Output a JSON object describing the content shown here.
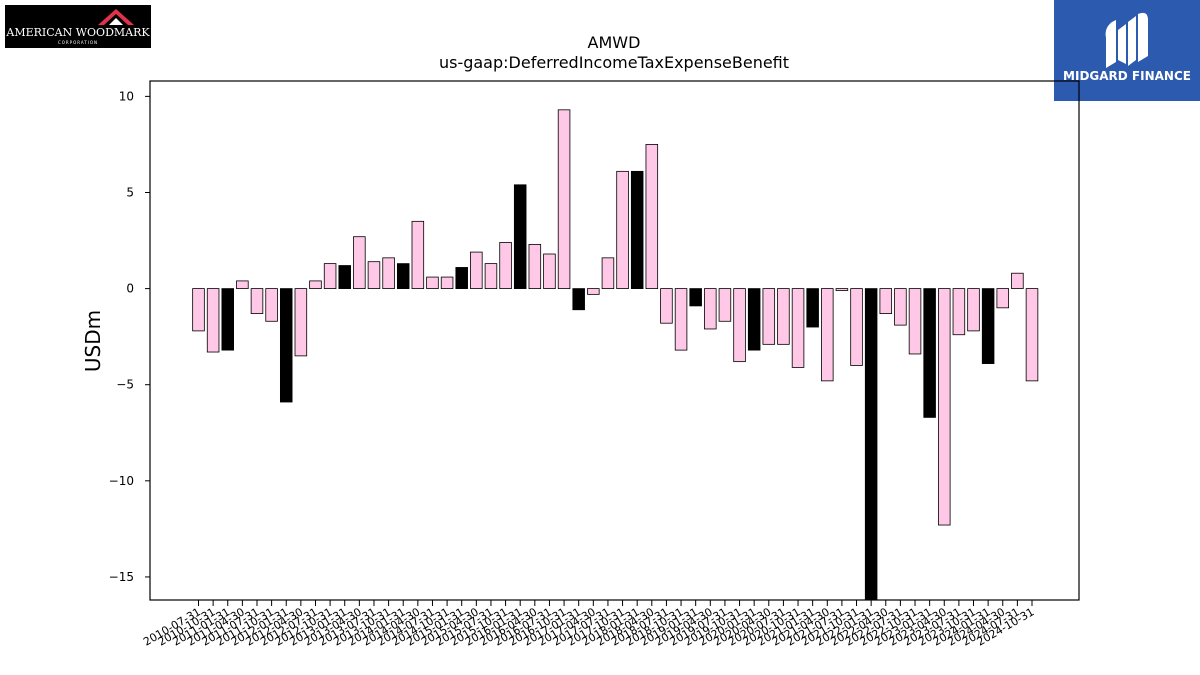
{
  "logos": {
    "left": {
      "text": "AMERICAN WOODMARK",
      "subtext": "CORPORATION"
    },
    "right": {
      "text": "MIDGARD FINANCE"
    }
  },
  "chart_data": {
    "type": "bar",
    "title": "AMWD",
    "subtitle": "us-gaap:DeferredIncomeTaxExpenseBenefit",
    "ylabel": "USDm",
    "xlabel": "",
    "ylim": [
      -16.2,
      10.8
    ],
    "yticks": [
      10,
      5,
      0,
      -5,
      -10,
      -15
    ],
    "ytick_labels": [
      "10",
      "5",
      "0",
      "−5",
      "−10",
      "−15"
    ],
    "colors": {
      "quarter": "#ffc8e6",
      "annual": "#000000",
      "edge": "#000000"
    },
    "categories": [
      "2010-07-31",
      "2010-10-31",
      "2011-01-31",
      "2011-04-30",
      "2011-07-31",
      "2011-10-31",
      "2012-01-31",
      "2012-04-30",
      "2012-07-31",
      "2012-10-31",
      "2013-01-31",
      "2013-04-30",
      "2013-07-31",
      "2013-10-31",
      "2014-01-31",
      "2014-04-30",
      "2014-07-31",
      "2014-10-31",
      "2015-01-31",
      "2015-04-30",
      "2015-07-31",
      "2015-10-31",
      "2016-01-31",
      "2016-04-30",
      "2016-07-31",
      "2016-10-31",
      "2017-01-31",
      "2017-04-30",
      "2017-07-31",
      "2017-10-31",
      "2018-01-31",
      "2018-04-30",
      "2018-07-31",
      "2018-10-31",
      "2019-01-31",
      "2019-04-30",
      "2019-07-31",
      "2019-10-31",
      "2020-01-31",
      "2020-04-30",
      "2020-07-31",
      "2020-10-31",
      "2021-01-31",
      "2021-04-30",
      "2021-07-31",
      "2021-10-31",
      "2022-01-31",
      "2022-04-30",
      "2022-07-31",
      "2022-10-31",
      "2023-01-31",
      "2023-04-30",
      "2023-07-31",
      "2023-10-31",
      "2024-01-31",
      "2024-04-30",
      "2024-07-31",
      "2024-10-31"
    ],
    "values": [
      -2.2,
      -3.3,
      -3.2,
      0.4,
      -1.3,
      -1.7,
      -5.9,
      -3.5,
      0.4,
      1.3,
      1.2,
      2.7,
      1.4,
      1.6,
      1.3,
      3.5,
      0.6,
      0.6,
      1.1,
      1.9,
      1.3,
      2.4,
      5.4,
      2.3,
      1.8,
      9.3,
      -1.1,
      -0.3,
      1.6,
      6.1,
      6.1,
      7.5,
      -1.8,
      -3.2,
      -0.9,
      -2.1,
      -1.7,
      -3.8,
      -3.2,
      -2.9,
      -2.9,
      -4.1,
      -2.0,
      -4.8,
      -0.1,
      -4.0,
      -16.2,
      -1.3,
      -1.9,
      -3.4,
      -6.7,
      -12.3,
      -2.4,
      -2.2,
      -3.9,
      -1.0,
      0.8,
      -4.8
    ],
    "annual": [
      false,
      false,
      true,
      false,
      false,
      false,
      true,
      false,
      false,
      false,
      true,
      false,
      false,
      false,
      true,
      false,
      false,
      false,
      true,
      false,
      false,
      false,
      true,
      false,
      false,
      false,
      true,
      false,
      false,
      false,
      true,
      false,
      false,
      false,
      true,
      false,
      false,
      false,
      true,
      false,
      false,
      false,
      true,
      false,
      false,
      false,
      true,
      false,
      false,
      false,
      true,
      false,
      false,
      false,
      true,
      false,
      false,
      false
    ]
  }
}
